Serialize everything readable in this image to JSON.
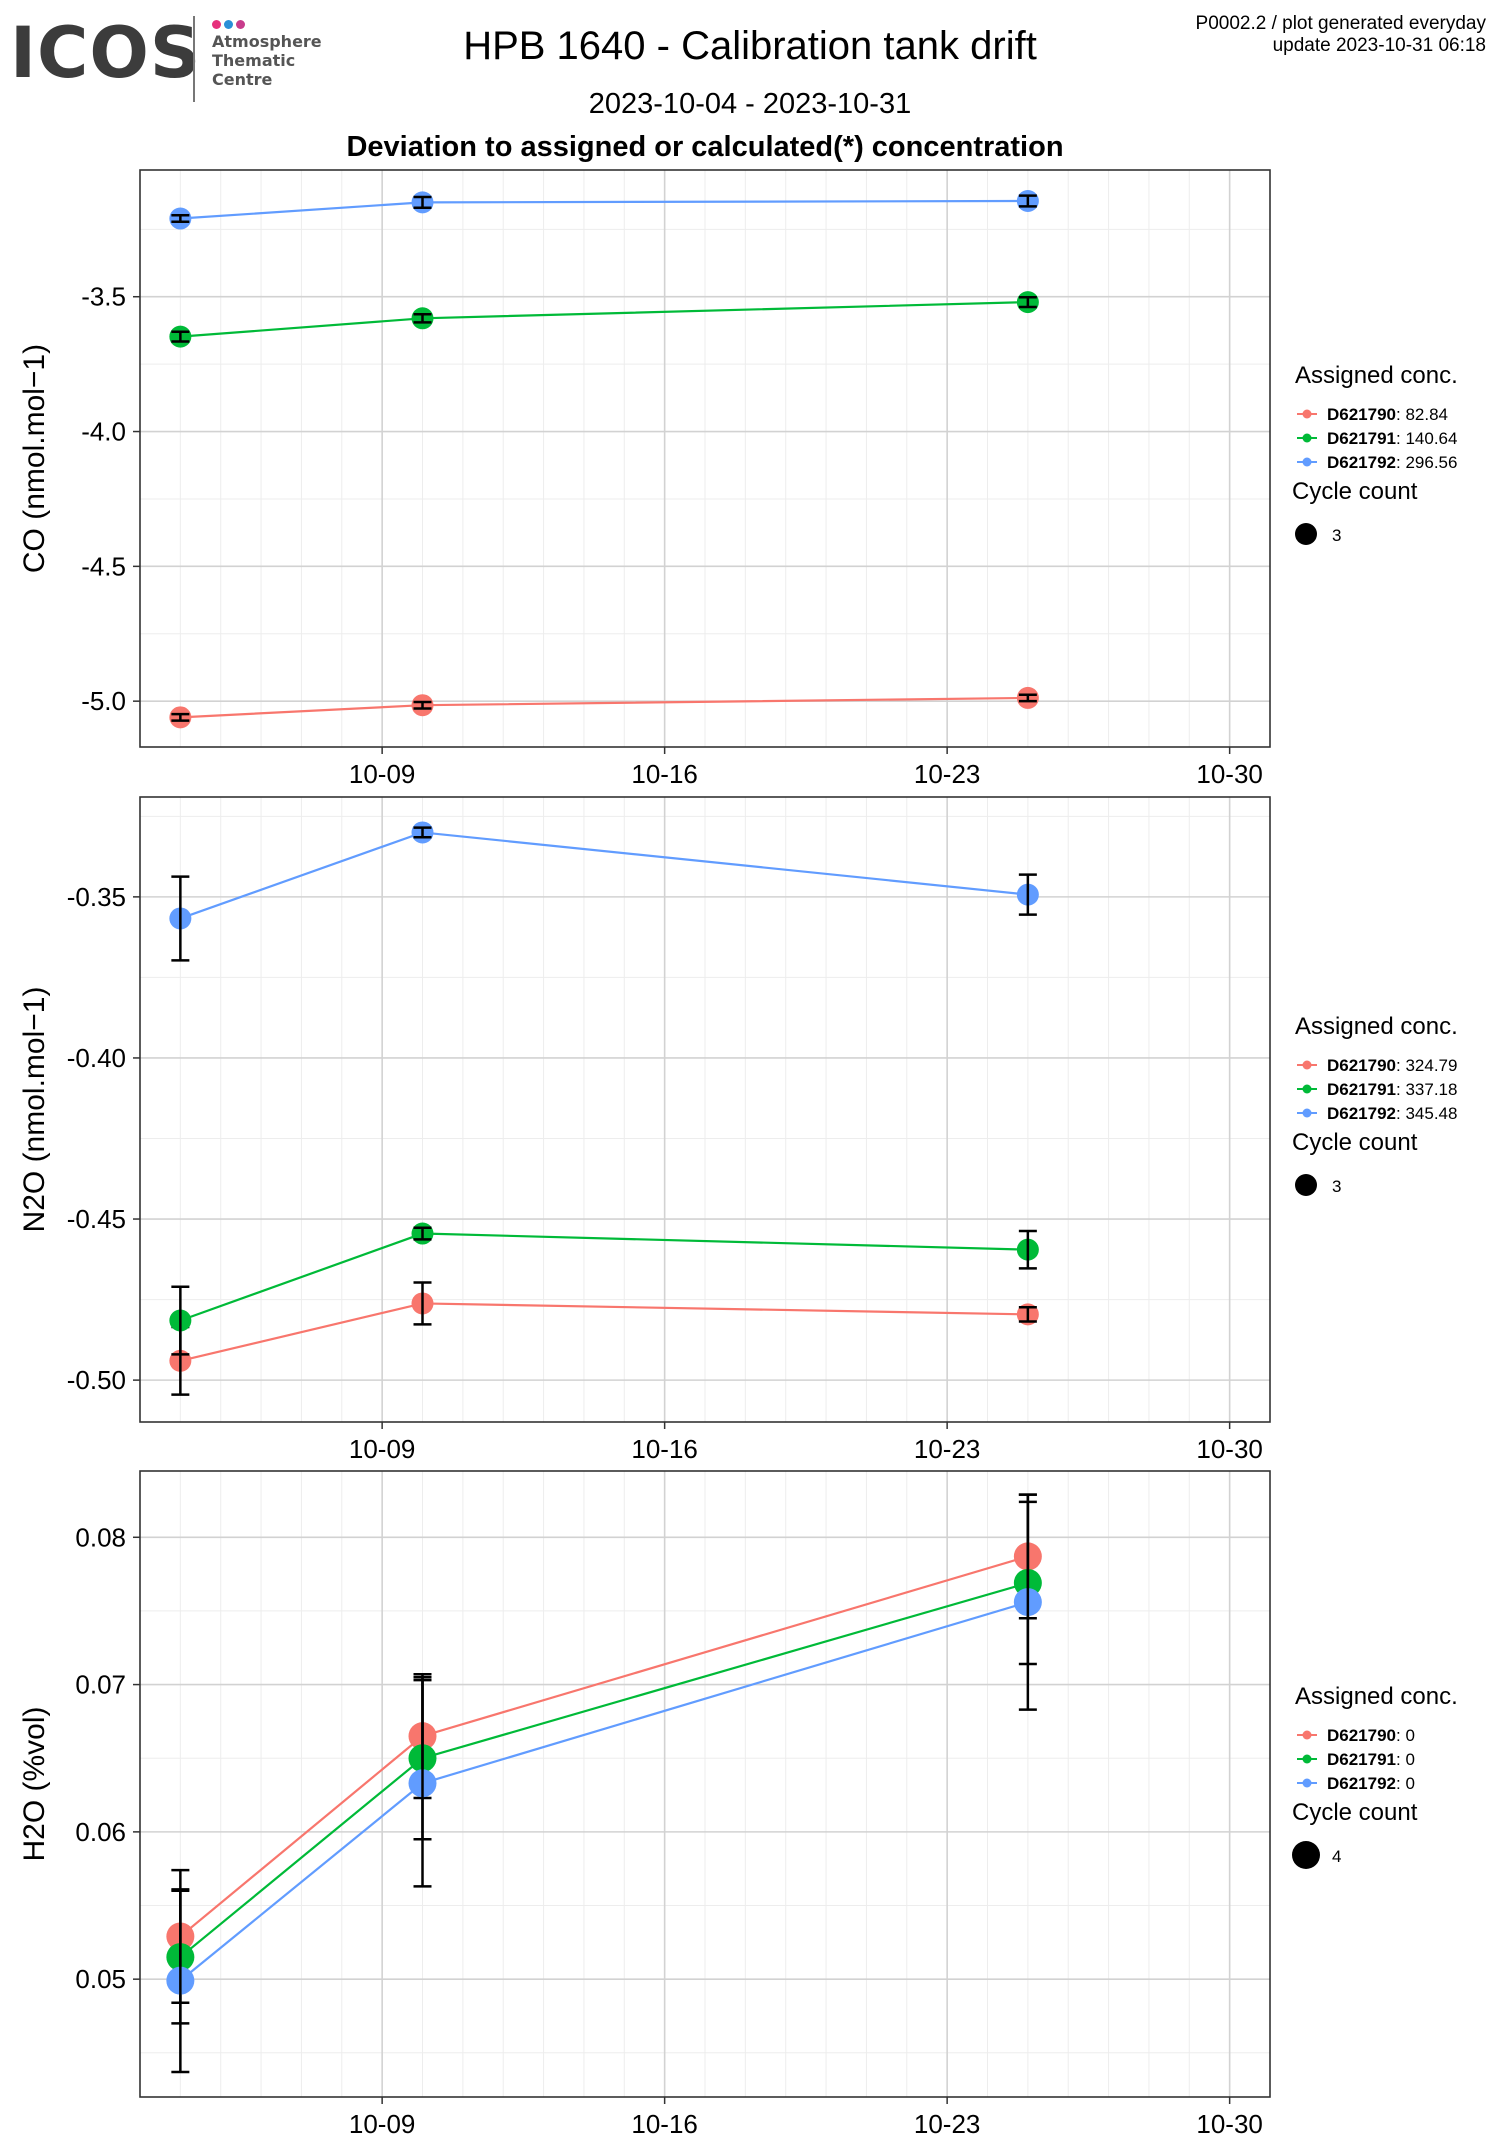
{
  "header": {
    "logo_text": "ICOS",
    "logo_subtitle": "Atmosphere\nThematic\nCentre",
    "logo_dot_colors": [
      "#e6317c",
      "#2a8fd7",
      "#c83c8c"
    ],
    "title": "HPB 1640 - Calibration tank drift",
    "date_range": "2023-10-04 - 2023-10-31",
    "subtitle": "Deviation to assigned or calculated(*) concentration",
    "corner_line1": "P0002.2 / plot generated everyday",
    "corner_line2": "update  2023-10-31 06:18"
  },
  "colors": {
    "D621790": "#F8766D",
    "D621791": "#00BA38",
    "D621792": "#619CFF",
    "major_grid": "#d2d2d2",
    "minor_grid": "#ededed"
  },
  "chart_data": [
    {
      "type": "line",
      "ylabel": "CO (nmol.mol−1)",
      "xlim": [
        "2023-10-03",
        "2023-10-31"
      ],
      "x_ticks": [
        {
          "date": "2023-10-09",
          "label": "10-09"
        },
        {
          "date": "2023-10-16",
          "label": "10-16"
        },
        {
          "date": "2023-10-23",
          "label": "10-23"
        },
        {
          "date": "2023-10-30",
          "label": "10-30"
        }
      ],
      "ylim": [
        -5.17,
        -3.03
      ],
      "y_ticks": [
        -3.5,
        -4.0,
        -4.5,
        -5.0
      ],
      "y_tick_labels": [
        "-3.5",
        "-4.0",
        "-4.5",
        "-5.0"
      ],
      "x": [
        "2023-10-04",
        "2023-10-10",
        "2023-10-25"
      ],
      "legend": {
        "title": "Assigned conc.",
        "size_title": "Cycle count",
        "size_value": "3",
        "position": "right"
      },
      "grid": true,
      "series": [
        {
          "name": "D621790",
          "assigned": "82.84",
          "values": [
            -5.06,
            -5.015,
            -4.988
          ],
          "err": [
            0.012,
            0.012,
            0.012
          ]
        },
        {
          "name": "D621791",
          "assigned": "140.64",
          "values": [
            -3.648,
            -3.58,
            -3.52
          ],
          "err": [
            0.018,
            0.015,
            0.018
          ]
        },
        {
          "name": "D621792",
          "assigned": "296.56",
          "values": [
            -3.21,
            -3.15,
            -3.145
          ],
          "err": [
            0.012,
            0.02,
            0.02
          ]
        }
      ]
    },
    {
      "type": "line",
      "ylabel": "N2O (nmol.mol−1)",
      "xlim": [
        "2023-10-03",
        "2023-10-31"
      ],
      "x_ticks": [
        {
          "date": "2023-10-09",
          "label": "10-09"
        },
        {
          "date": "2023-10-16",
          "label": "10-16"
        },
        {
          "date": "2023-10-23",
          "label": "10-23"
        },
        {
          "date": "2023-10-30",
          "label": "10-30"
        }
      ],
      "ylim": [
        -0.513,
        -0.319
      ],
      "y_ticks": [
        -0.35,
        -0.4,
        -0.45,
        -0.5
      ],
      "y_tick_labels": [
        "-0.35",
        "-0.40",
        "-0.45",
        "-0.50"
      ],
      "x": [
        "2023-10-04",
        "2023-10-10",
        "2023-10-25"
      ],
      "legend": {
        "title": "Assigned conc.",
        "size_title": "Cycle count",
        "size_value": "3",
        "position": "right"
      },
      "grid": true,
      "series": [
        {
          "name": "D621790",
          "assigned": "324.79",
          "values": [
            -0.494,
            -0.4762,
            -0.4796
          ],
          "err": [
            0.0105,
            0.0065,
            0.0022
          ]
        },
        {
          "name": "D621791",
          "assigned": "337.18",
          "values": [
            -0.4815,
            -0.4545,
            -0.4595
          ],
          "err": [
            0.0105,
            0.0018,
            0.0058
          ]
        },
        {
          "name": "D621792",
          "assigned": "345.48",
          "values": [
            -0.3567,
            -0.33,
            -0.3493
          ],
          "err": [
            0.013,
            0.0015,
            0.0062
          ]
        }
      ]
    },
    {
      "type": "line",
      "ylabel": "H2O (%vol)",
      "xlim": [
        "2023-10-03",
        "2023-10-31"
      ],
      "x_ticks": [
        {
          "date": "2023-10-09",
          "label": "10-09"
        },
        {
          "date": "2023-10-16",
          "label": "10-16"
        },
        {
          "date": "2023-10-23",
          "label": "10-23"
        },
        {
          "date": "2023-10-30",
          "label": "10-30"
        }
      ],
      "ylim": [
        0.042,
        0.0845
      ],
      "y_ticks": [
        0.08,
        0.07,
        0.06,
        0.05
      ],
      "y_tick_labels": [
        "0.08",
        "0.07",
        "0.06",
        "0.05"
      ],
      "x": [
        "2023-10-04",
        "2023-10-10",
        "2023-10-25"
      ],
      "legend": {
        "title": "Assigned conc.",
        "size_title": "Cycle count",
        "size_value": "4",
        "position": "right"
      },
      "grid": true,
      "series": [
        {
          "name": "D621790",
          "assigned": "0",
          "values": [
            0.0529,
            0.0665,
            0.0787
          ],
          "err": [
            0.0045,
            0.0042,
            0.0042
          ]
        },
        {
          "name": "D621791",
          "assigned": "0",
          "values": [
            0.0515,
            0.065,
            0.0769
          ],
          "err": [
            0.0045,
            0.0055,
            0.0055
          ]
        },
        {
          "name": "D621792",
          "assigned": "0",
          "values": [
            0.0499,
            0.0633,
            0.0756
          ],
          "err": [
            0.0062,
            0.007,
            0.0073
          ]
        }
      ]
    }
  ]
}
